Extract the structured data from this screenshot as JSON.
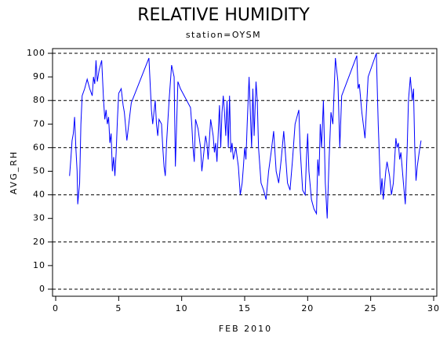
{
  "chart_data": {
    "type": "line",
    "title": "RELATIVE HUMIDITY",
    "subtitle": "station=OYSM",
    "x_label": "FEB 2010",
    "y_label": "AVG_RH",
    "xlim": [
      -0.25,
      30.25
    ],
    "ylim": [
      -3,
      102
    ],
    "xticks": [
      0,
      5,
      10,
      15,
      20,
      25,
      30
    ],
    "yticks": [
      0,
      10,
      20,
      30,
      40,
      50,
      60,
      70,
      80,
      90,
      100
    ],
    "grid_lines": [
      0,
      20,
      40,
      60,
      80,
      100
    ],
    "grid": true,
    "x": [
      1.1,
      1.2,
      1.3,
      1.4,
      1.5,
      1.6,
      1.7,
      1.75,
      1.9,
      2.0,
      2.1,
      2.3,
      2.5,
      2.7,
      2.9,
      3.0,
      3.1,
      3.2,
      3.3,
      3.45,
      3.65,
      3.8,
      3.9,
      4.0,
      4.1,
      4.2,
      4.3,
      4.4,
      4.5,
      4.6,
      4.7,
      4.8,
      4.9,
      5.0,
      5.2,
      5.35,
      5.45,
      5.65,
      5.8,
      6.0,
      7.4,
      7.6,
      7.7,
      7.8,
      7.9,
      8.0,
      8.1,
      8.2,
      8.4,
      8.5,
      8.6,
      8.7,
      8.8,
      9.0,
      9.2,
      9.4,
      9.5,
      9.6,
      9.7,
      9.9,
      10.7,
      10.8,
      10.9,
      11.0,
      11.1,
      11.3,
      11.5,
      11.6,
      11.7,
      11.9,
      12.0,
      12.1,
      12.3,
      12.5,
      12.6,
      12.7,
      12.8,
      13.0,
      13.1,
      13.2,
      13.3,
      13.4,
      13.5,
      13.6,
      13.7,
      13.8,
      13.9,
      14.0,
      14.1,
      14.3,
      14.5,
      14.65,
      14.8,
      14.9,
      15.0,
      15.1,
      15.2,
      15.35,
      15.45,
      15.55,
      15.65,
      15.75,
      15.9,
      16.0,
      16.1,
      16.3,
      16.5,
      16.7,
      16.9,
      17.1,
      17.3,
      17.5,
      17.7,
      17.9,
      18.1,
      18.2,
      18.4,
      18.6,
      18.8,
      19.0,
      19.3,
      19.4,
      19.6,
      19.8,
      19.9,
      20.0,
      20.1,
      20.3,
      20.5,
      20.7,
      20.8,
      20.9,
      21.0,
      21.1,
      21.25,
      21.4,
      21.55,
      21.7,
      21.85,
      22.0,
      22.2,
      22.4,
      22.55,
      22.7,
      23.9,
      24.0,
      24.1,
      24.3,
      24.55,
      24.8,
      25.45,
      25.6,
      25.8,
      25.9,
      26.0,
      26.2,
      26.3,
      26.5,
      26.65,
      26.8,
      27.0,
      27.1,
      27.2,
      27.3,
      27.4,
      27.6,
      27.75,
      27.9,
      28.0,
      28.15,
      28.3,
      28.4,
      28.5,
      28.6,
      28.7,
      28.85,
      29.0
    ],
    "series": [
      {
        "name": "AVG_RH",
        "color": "#0000ff",
        "values": [
          48,
          55,
          63,
          66,
          73,
          60,
          50,
          36,
          45,
          70,
          82,
          85,
          89,
          85,
          82,
          90,
          87,
          97,
          88,
          93,
          97,
          80,
          72,
          76,
          70,
          73,
          62,
          66,
          50,
          56,
          48,
          58,
          72,
          83,
          85,
          78,
          75,
          63,
          70,
          79,
          98,
          76,
          70,
          75,
          80,
          70,
          65,
          72,
          70,
          60,
          52,
          48,
          62,
          80,
          95,
          90,
          52,
          70,
          88,
          85,
          77,
          70,
          60,
          54,
          72,
          68,
          60,
          50,
          55,
          65,
          62,
          55,
          72,
          65,
          58,
          62,
          54,
          78,
          60,
          75,
          82,
          75,
          65,
          80,
          60,
          82,
          58,
          62,
          55,
          60,
          52,
          40,
          45,
          52,
          60,
          55,
          70,
          90,
          75,
          60,
          85,
          65,
          88,
          80,
          60,
          45,
          42,
          38,
          50,
          58,
          67,
          50,
          45,
          55,
          67,
          60,
          45,
          42,
          55,
          70,
          76,
          60,
          42,
          40,
          55,
          66,
          50,
          38,
          34,
          32,
          55,
          48,
          70,
          60,
          80,
          45,
          30,
          55,
          75,
          70,
          98,
          88,
          60,
          82,
          99,
          85,
          87,
          75,
          64,
          90,
          100,
          70,
          40,
          47,
          38,
          50,
          54,
          48,
          40,
          45,
          64,
          60,
          62,
          55,
          58,
          45,
          36,
          60,
          80,
          90,
          80,
          85,
          60,
          46,
          52,
          58,
          63
        ]
      }
    ]
  }
}
